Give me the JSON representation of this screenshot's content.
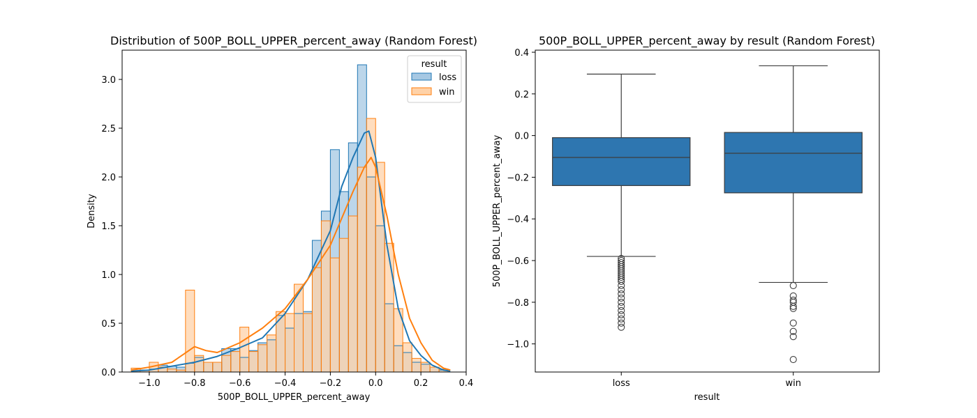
{
  "chart_data": [
    {
      "type": "histogram",
      "title": "Distribution of 500P_BOLL_UPPER_percent_away (Random Forest)",
      "xlabel": "500P_BOLL_UPPER_percent_away",
      "ylabel": "Density",
      "xlim": [
        -1.12,
        0.4
      ],
      "ylim": [
        0,
        3.3
      ],
      "xticks": [
        -1.0,
        -0.8,
        -0.6,
        -0.4,
        -0.2,
        0.0,
        0.2,
        0.4
      ],
      "xtick_labels": [
        "−1.0",
        "−0.8",
        "−0.6",
        "−0.4",
        "−0.2",
        "0.0",
        "0.2",
        "0.4"
      ],
      "yticks": [
        0.0,
        0.5,
        1.0,
        1.5,
        2.0,
        2.5,
        3.0
      ],
      "ytick_labels": [
        "0.0",
        "0.5",
        "1.0",
        "1.5",
        "2.0",
        "2.5",
        "3.0"
      ],
      "legend": {
        "title": "result",
        "placement": "top-right",
        "entries": [
          "loss",
          "win"
        ]
      },
      "bin_edges": [
        -1.08,
        -1.04,
        -1.0,
        -0.96,
        -0.92,
        -0.88,
        -0.84,
        -0.8,
        -0.76,
        -0.72,
        -0.68,
        -0.64,
        -0.6,
        -0.56,
        -0.52,
        -0.48,
        -0.44,
        -0.4,
        -0.36,
        -0.32,
        -0.28,
        -0.24,
        -0.2,
        -0.16,
        -0.12,
        -0.08,
        -0.04,
        0.0,
        0.04,
        0.08,
        0.12,
        0.16,
        0.2,
        0.24,
        0.28,
        0.32
      ],
      "series": [
        {
          "name": "loss",
          "color": "#1f77b4",
          "fill": "#a6c8e3",
          "density": [
            0.01,
            0.02,
            0.03,
            0.07,
            0.06,
            0.05,
            0.09,
            0.15,
            0.1,
            0.1,
            0.24,
            0.24,
            0.15,
            0.22,
            0.3,
            0.33,
            0.58,
            0.45,
            0.6,
            0.62,
            1.35,
            1.65,
            2.28,
            1.85,
            2.35,
            3.15,
            2.0,
            1.5,
            0.7,
            0.27,
            0.2,
            0.1,
            0.08,
            0.05,
            0.02
          ],
          "kde_x": [
            -1.08,
            -1.0,
            -0.9,
            -0.8,
            -0.7,
            -0.6,
            -0.5,
            -0.4,
            -0.3,
            -0.2,
            -0.15,
            -0.1,
            -0.05,
            -0.03,
            0.0,
            0.05,
            0.1,
            0.15,
            0.2,
            0.25,
            0.3,
            0.33
          ],
          "kde_y": [
            0.01,
            0.02,
            0.06,
            0.1,
            0.16,
            0.25,
            0.35,
            0.6,
            0.95,
            1.45,
            1.9,
            2.2,
            2.45,
            2.47,
            2.2,
            1.3,
            0.65,
            0.32,
            0.17,
            0.07,
            0.02,
            0.01
          ]
        },
        {
          "name": "win",
          "color": "#ff7f0e",
          "fill": "#ffd2a8",
          "density": [
            0.04,
            0.02,
            0.1,
            0.05,
            0.03,
            0.02,
            0.84,
            0.17,
            0.1,
            0.1,
            0.17,
            0.21,
            0.46,
            0.21,
            0.28,
            0.38,
            0.62,
            0.6,
            0.9,
            0.6,
            1.07,
            1.55,
            1.17,
            1.37,
            1.6,
            2.1,
            2.6,
            2.15,
            1.32,
            0.65,
            0.3,
            0.14,
            0.1,
            0.05,
            0.03
          ],
          "kde_x": [
            -1.08,
            -1.0,
            -0.9,
            -0.85,
            -0.8,
            -0.75,
            -0.7,
            -0.6,
            -0.5,
            -0.4,
            -0.3,
            -0.2,
            -0.1,
            -0.05,
            -0.02,
            0.0,
            0.05,
            0.1,
            0.15,
            0.2,
            0.25,
            0.3,
            0.33
          ],
          "kde_y": [
            0.02,
            0.05,
            0.1,
            0.18,
            0.26,
            0.22,
            0.2,
            0.3,
            0.45,
            0.65,
            0.95,
            1.3,
            1.85,
            2.1,
            2.2,
            2.1,
            1.6,
            1.0,
            0.55,
            0.3,
            0.12,
            0.04,
            0.02
          ]
        }
      ]
    },
    {
      "type": "box",
      "title": "500P_BOLL_UPPER_percent_away by result (Random Forest)",
      "xlabel": "result",
      "ylabel": "500P_BOLL_UPPER_percent_away",
      "ylim": [
        -1.135,
        0.41
      ],
      "yticks": [
        -1.0,
        -0.8,
        -0.6,
        -0.4,
        -0.2,
        0.0,
        0.2,
        0.4
      ],
      "ytick_labels": [
        "−1.0",
        "−0.8",
        "−0.6",
        "−0.4",
        "−0.2",
        "0.0",
        "0.2",
        "0.4"
      ],
      "color": "#2e76b0",
      "categories": [
        "loss",
        "win"
      ],
      "boxes": [
        {
          "category": "loss",
          "whisker_low": -0.58,
          "q1": -0.24,
          "median": -0.105,
          "q3": -0.01,
          "whisker_high": 0.295,
          "outliers": [
            -0.59,
            -0.6,
            -0.61,
            -0.62,
            -0.63,
            -0.64,
            -0.65,
            -0.66,
            -0.67,
            -0.68,
            -0.69,
            -0.7,
            -0.72,
            -0.74,
            -0.76,
            -0.78,
            -0.8,
            -0.82,
            -0.84,
            -0.86,
            -0.88,
            -0.9,
            -0.92
          ]
        },
        {
          "category": "win",
          "whisker_low": -0.705,
          "q1": -0.275,
          "median": -0.085,
          "q3": 0.015,
          "whisker_high": 0.335,
          "outliers": [
            -0.72,
            -0.77,
            -0.79,
            -0.8,
            -0.82,
            -0.83,
            -0.9,
            -0.94,
            -0.965,
            -1.075
          ]
        }
      ]
    }
  ]
}
